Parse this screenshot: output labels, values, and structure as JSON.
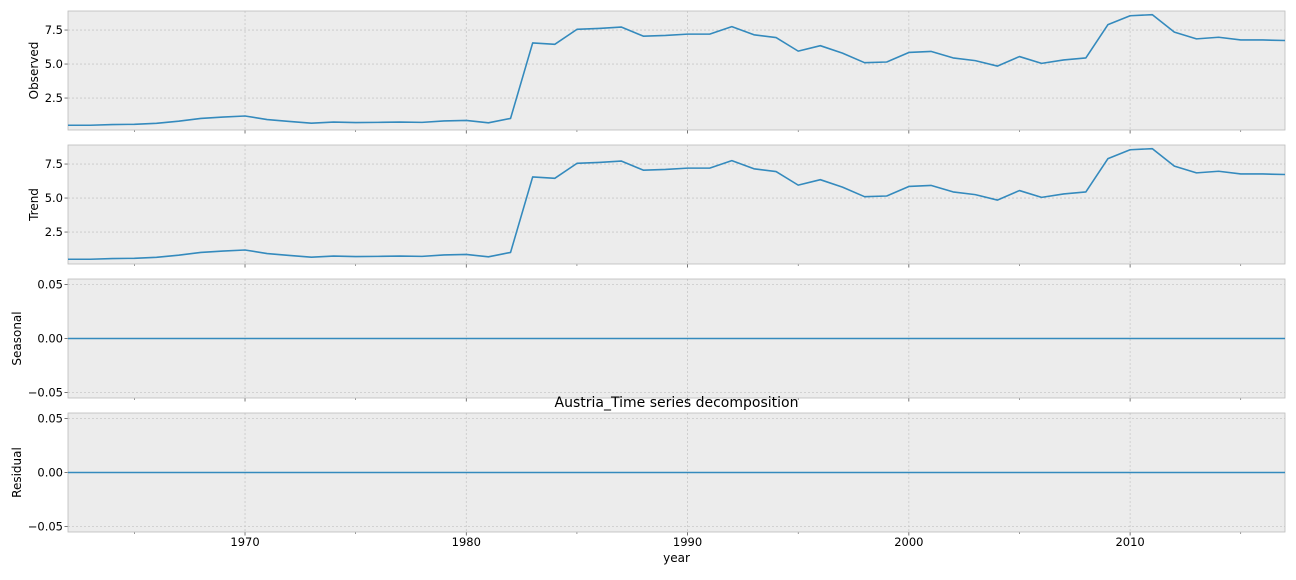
{
  "chart_data": {
    "type": "line",
    "title": "Austria_Time series decomposition",
    "xlabel": "year",
    "x_range": [
      1962,
      2017
    ],
    "x_ticks": [
      1970,
      1980,
      1990,
      2000,
      2010
    ],
    "x": [
      1962,
      1963,
      1964,
      1965,
      1966,
      1967,
      1968,
      1969,
      1970,
      1971,
      1972,
      1973,
      1974,
      1975,
      1976,
      1977,
      1978,
      1979,
      1980,
      1981,
      1982,
      1983,
      1984,
      1985,
      1986,
      1987,
      1988,
      1989,
      1990,
      1991,
      1992,
      1993,
      1994,
      1995,
      1996,
      1997,
      1998,
      1999,
      2000,
      2001,
      2002,
      2003,
      2004,
      2005,
      2006,
      2007,
      2008,
      2009,
      2010,
      2011,
      2012,
      2013,
      2014,
      2015,
      2016,
      2017
    ],
    "grid": true,
    "line_color": "#348abd",
    "panels": [
      {
        "name": "Observed",
        "ylabel": "Observed",
        "ylim": [
          0.15,
          8.9
        ],
        "yticks": [
          "2.5",
          "5.0",
          "7.5"
        ],
        "ytick_values": [
          2.5,
          5.0,
          7.5
        ],
        "values": [
          0.5,
          0.5,
          0.55,
          0.57,
          0.64,
          0.8,
          1.0,
          1.1,
          1.18,
          0.92,
          0.78,
          0.65,
          0.73,
          0.7,
          0.71,
          0.73,
          0.71,
          0.82,
          0.85,
          0.68,
          1.0,
          6.55,
          6.45,
          7.55,
          7.62,
          7.72,
          7.05,
          7.1,
          7.2,
          7.2,
          7.75,
          7.15,
          6.95,
          5.95,
          6.35,
          5.8,
          5.1,
          5.15,
          5.85,
          5.93,
          5.45,
          5.25,
          4.85,
          5.55,
          5.05,
          5.3,
          5.45,
          7.9,
          8.55,
          8.63,
          7.35,
          6.85,
          6.97,
          6.77,
          6.77,
          6.73
        ]
      },
      {
        "name": "Trend",
        "ylabel": "Trend",
        "ylim": [
          0.15,
          8.9
        ],
        "yticks": [
          "2.5",
          "5.0",
          "7.5"
        ],
        "ytick_values": [
          2.5,
          5.0,
          7.5
        ],
        "values": [
          0.5,
          0.5,
          0.55,
          0.57,
          0.64,
          0.8,
          1.0,
          1.1,
          1.18,
          0.92,
          0.78,
          0.65,
          0.73,
          0.7,
          0.71,
          0.73,
          0.71,
          0.82,
          0.85,
          0.68,
          1.0,
          6.55,
          6.45,
          7.55,
          7.62,
          7.72,
          7.05,
          7.1,
          7.2,
          7.2,
          7.75,
          7.15,
          6.95,
          5.95,
          6.35,
          5.8,
          5.1,
          5.15,
          5.85,
          5.93,
          5.45,
          5.25,
          4.85,
          5.55,
          5.05,
          5.3,
          5.45,
          7.9,
          8.55,
          8.63,
          7.35,
          6.85,
          6.97,
          6.77,
          6.77,
          6.73
        ]
      },
      {
        "name": "Seasonal",
        "ylabel": "Seasonal",
        "ylim": [
          -0.055,
          0.055
        ],
        "yticks": [
          "−0.05",
          "0.00",
          "0.05"
        ],
        "ytick_values": [
          -0.05,
          0.0,
          0.05
        ],
        "constant": 0.0
      },
      {
        "name": "Residual",
        "ylabel": "Residual",
        "ylim": [
          -0.055,
          0.055
        ],
        "yticks": [
          "−0.05",
          "0.00",
          "0.05"
        ],
        "ytick_values": [
          -0.05,
          0.0,
          0.05
        ],
        "constant": 0.0
      }
    ]
  }
}
